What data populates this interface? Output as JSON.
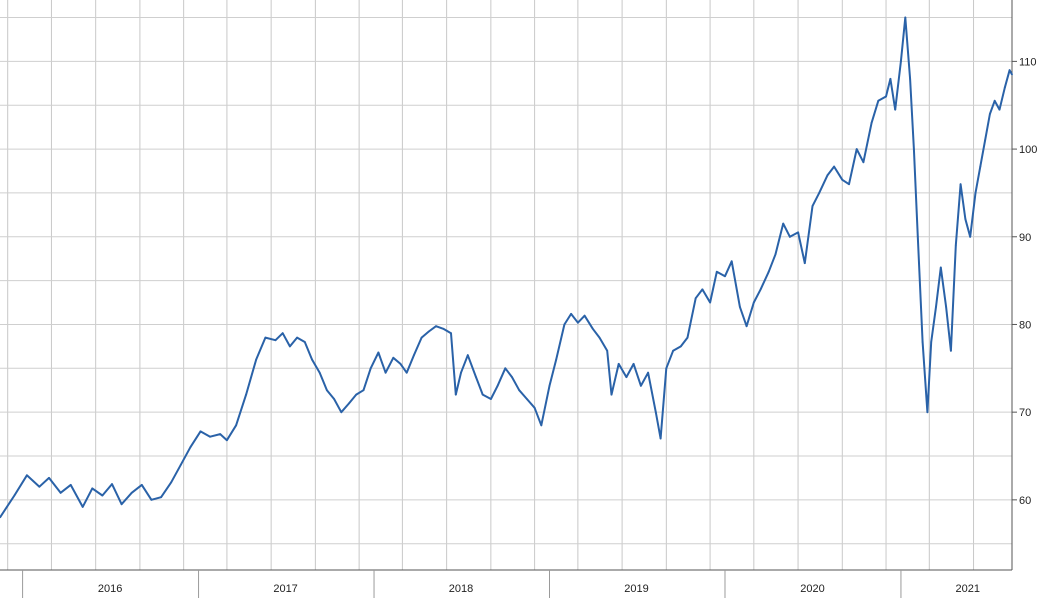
{
  "chart_data": {
    "type": "line",
    "title": "",
    "xlabel": "",
    "ylabel": "",
    "x_range": [
      "2015-11-15",
      "2021-08-20"
    ],
    "ylim": [
      52,
      117
    ],
    "y_ticks": [
      60,
      70,
      80,
      90,
      100,
      110
    ],
    "y_tick_labels": [
      "60",
      "70",
      "80",
      "90",
      "100",
      "110"
    ],
    "y_axis_side": "right",
    "grid": true,
    "legend": "none",
    "x_tick_labels": [
      {
        "label": "2016",
        "date": "2016-07-01"
      },
      {
        "label": "2017",
        "date": "2017-07-01"
      },
      {
        "label": "2018",
        "date": "2018-07-01"
      },
      {
        "label": "2019",
        "date": "2019-07-01"
      },
      {
        "label": "2020",
        "date": "2020-07-01"
      },
      {
        "label": "2021",
        "date": "2021-05-20"
      }
    ],
    "series": [
      {
        "color": "#2a62a8",
        "points": [
          [
            "2015-11-15",
            58.0
          ],
          [
            "2015-12-15",
            60.5
          ],
          [
            "2016-01-10",
            62.8
          ],
          [
            "2016-02-05",
            61.5
          ],
          [
            "2016-02-25",
            62.5
          ],
          [
            "2016-03-20",
            60.8
          ],
          [
            "2016-04-10",
            61.7
          ],
          [
            "2016-05-05",
            59.2
          ],
          [
            "2016-05-25",
            61.3
          ],
          [
            "2016-06-15",
            60.5
          ],
          [
            "2016-07-05",
            61.8
          ],
          [
            "2016-07-25",
            59.5
          ],
          [
            "2016-08-15",
            60.8
          ],
          [
            "2016-09-05",
            61.7
          ],
          [
            "2016-09-25",
            60.0
          ],
          [
            "2016-10-15",
            60.3
          ],
          [
            "2016-11-05",
            62.0
          ],
          [
            "2016-11-25",
            64.0
          ],
          [
            "2016-12-15",
            66.0
          ],
          [
            "2017-01-05",
            67.8
          ],
          [
            "2017-01-25",
            67.2
          ],
          [
            "2017-02-15",
            67.5
          ],
          [
            "2017-03-01",
            66.8
          ],
          [
            "2017-03-20",
            68.5
          ],
          [
            "2017-04-10",
            72.0
          ],
          [
            "2017-05-01",
            76.0
          ],
          [
            "2017-05-20",
            78.5
          ],
          [
            "2017-06-10",
            78.2
          ],
          [
            "2017-06-25",
            79.0
          ],
          [
            "2017-07-10",
            77.5
          ],
          [
            "2017-07-25",
            78.5
          ],
          [
            "2017-08-10",
            78.0
          ],
          [
            "2017-08-25",
            76.0
          ],
          [
            "2017-09-10",
            74.5
          ],
          [
            "2017-09-25",
            72.5
          ],
          [
            "2017-10-10",
            71.5
          ],
          [
            "2017-10-25",
            70.0
          ],
          [
            "2017-11-10",
            71.0
          ],
          [
            "2017-11-25",
            72.0
          ],
          [
            "2017-12-10",
            72.5
          ],
          [
            "2017-12-25",
            75.0
          ],
          [
            "2018-01-10",
            76.8
          ],
          [
            "2018-01-25",
            74.5
          ],
          [
            "2018-02-10",
            76.2
          ],
          [
            "2018-02-25",
            75.5
          ],
          [
            "2018-03-10",
            74.5
          ],
          [
            "2018-03-25",
            76.5
          ],
          [
            "2018-04-10",
            78.5
          ],
          [
            "2018-04-25",
            79.2
          ],
          [
            "2018-05-10",
            79.8
          ],
          [
            "2018-05-25",
            79.5
          ],
          [
            "2018-06-10",
            79.0
          ],
          [
            "2018-06-20",
            72.0
          ],
          [
            "2018-07-01",
            74.5
          ],
          [
            "2018-07-15",
            76.5
          ],
          [
            "2018-08-01",
            74.0
          ],
          [
            "2018-08-15",
            72.0
          ],
          [
            "2018-09-01",
            71.5
          ],
          [
            "2018-09-15",
            73.0
          ],
          [
            "2018-10-01",
            75.0
          ],
          [
            "2018-10-15",
            74.0
          ],
          [
            "2018-10-30",
            72.5
          ],
          [
            "2018-11-15",
            71.5
          ],
          [
            "2018-12-01",
            70.5
          ],
          [
            "2018-12-15",
            68.5
          ],
          [
            "2019-01-01",
            73.0
          ],
          [
            "2019-01-15",
            76.0
          ],
          [
            "2019-02-01",
            80.0
          ],
          [
            "2019-02-15",
            81.2
          ],
          [
            "2019-03-01",
            80.2
          ],
          [
            "2019-03-15",
            81.0
          ],
          [
            "2019-04-01",
            79.5
          ],
          [
            "2019-04-15",
            78.5
          ],
          [
            "2019-05-01",
            77.0
          ],
          [
            "2019-05-10",
            72.0
          ],
          [
            "2019-05-25",
            75.5
          ],
          [
            "2019-06-10",
            74.0
          ],
          [
            "2019-06-25",
            75.5
          ],
          [
            "2019-07-10",
            73.0
          ],
          [
            "2019-07-25",
            74.5
          ],
          [
            "2019-08-10",
            70.0
          ],
          [
            "2019-08-20",
            67.0
          ],
          [
            "2019-09-01",
            75.0
          ],
          [
            "2019-09-15",
            77.0
          ],
          [
            "2019-10-01",
            77.5
          ],
          [
            "2019-10-15",
            78.5
          ],
          [
            "2019-11-01",
            83.0
          ],
          [
            "2019-11-15",
            84.0
          ],
          [
            "2019-12-01",
            82.5
          ],
          [
            "2019-12-15",
            86.0
          ],
          [
            "2020-01-01",
            85.5
          ],
          [
            "2020-01-15",
            87.2
          ],
          [
            "2020-02-01",
            82.0
          ],
          [
            "2020-02-15",
            79.8
          ],
          [
            "2020-03-01",
            82.5
          ],
          [
            "2020-03-15",
            84.0
          ],
          [
            "2020-04-01",
            86.0
          ],
          [
            "2020-04-15",
            88.0
          ],
          [
            "2020-05-01",
            91.5
          ],
          [
            "2020-05-15",
            90.0
          ],
          [
            "2020-06-01",
            90.5
          ],
          [
            "2020-06-15",
            87.0
          ],
          [
            "2020-07-01",
            93.5
          ],
          [
            "2020-07-15",
            95.0
          ],
          [
            "2020-08-01",
            97.0
          ],
          [
            "2020-08-15",
            98.0
          ],
          [
            "2020-09-01",
            96.5
          ],
          [
            "2020-09-15",
            96.0
          ],
          [
            "2020-10-01",
            100.0
          ],
          [
            "2020-10-15",
            98.5
          ],
          [
            "2020-11-01",
            103.0
          ],
          [
            "2020-11-15",
            105.5
          ],
          [
            "2020-12-01",
            106.0
          ],
          [
            "2020-12-10",
            108.0
          ],
          [
            "2020-12-20",
            104.5
          ],
          [
            "2021-01-01",
            110.0
          ],
          [
            "2021-01-10",
            115.0
          ],
          [
            "2021-01-20",
            108.0
          ],
          [
            "2021-01-28",
            100.0
          ],
          [
            "2021-02-05",
            90.0
          ],
          [
            "2021-02-15",
            78.0
          ],
          [
            "2021-02-25",
            70.0
          ],
          [
            "2021-03-05",
            78.0
          ],
          [
            "2021-03-15",
            82.0
          ],
          [
            "2021-03-25",
            86.5
          ],
          [
            "2021-04-05",
            82.0
          ],
          [
            "2021-04-15",
            77.0
          ],
          [
            "2021-04-25",
            89.0
          ],
          [
            "2021-05-05",
            96.0
          ],
          [
            "2021-05-15",
            92.0
          ],
          [
            "2021-05-25",
            90.0
          ],
          [
            "2021-06-05",
            95.0
          ],
          [
            "2021-06-15",
            98.0
          ],
          [
            "2021-06-25",
            101.0
          ],
          [
            "2021-07-05",
            104.0
          ],
          [
            "2021-07-15",
            105.5
          ],
          [
            "2021-07-25",
            104.5
          ],
          [
            "2021-08-05",
            107.0
          ],
          [
            "2021-08-15",
            109.0
          ],
          [
            "2021-08-20",
            108.5
          ]
        ]
      }
    ]
  }
}
